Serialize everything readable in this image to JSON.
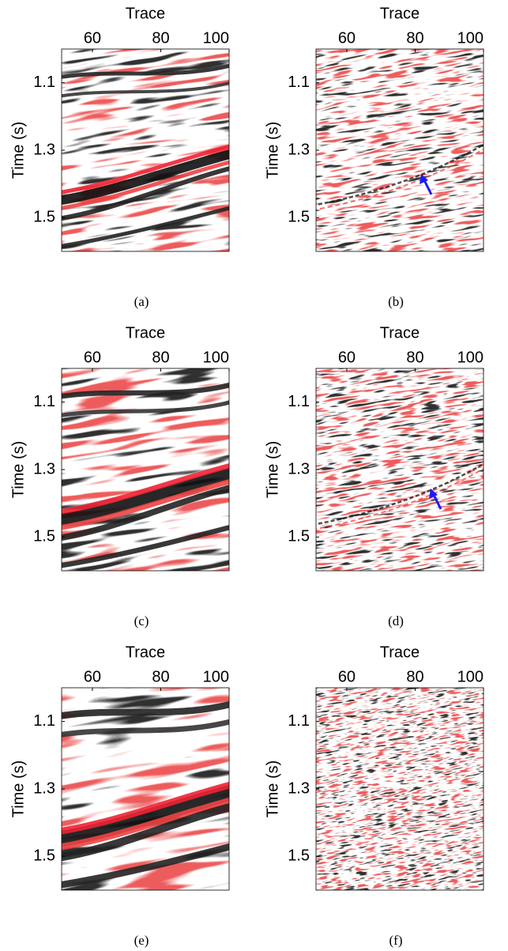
{
  "chart_data": [
    {
      "type": "seismic",
      "title": "Trace",
      "ylabel": "Time (s)",
      "xlim": [
        51,
        100
      ],
      "xticks": [
        60,
        80,
        100
      ],
      "ylim": [
        1.0,
        1.6
      ],
      "yticks": [
        1.1,
        1.3,
        1.5
      ],
      "caption": "(a)"
    },
    {
      "type": "seismic",
      "title": "Trace",
      "ylabel": "Time (s)",
      "xlim": [
        51,
        100
      ],
      "xticks": [
        60,
        80,
        100
      ],
      "ylim": [
        1.0,
        1.6
      ],
      "yticks": [
        1.1,
        1.3,
        1.5
      ],
      "caption": "(b)"
    },
    {
      "type": "seismic",
      "title": "Trace",
      "ylabel": "Time (s)",
      "xlim": [
        51,
        100
      ],
      "xticks": [
        60,
        80,
        100
      ],
      "ylim": [
        1.0,
        1.6
      ],
      "yticks": [
        1.1,
        1.3,
        1.5
      ],
      "caption": "(c)"
    },
    {
      "type": "seismic",
      "title": "Trace",
      "ylabel": "Time (s)",
      "xlim": [
        51,
        100
      ],
      "xticks": [
        60,
        80,
        100
      ],
      "ylim": [
        1.0,
        1.6
      ],
      "yticks": [
        1.1,
        1.3,
        1.5
      ],
      "caption": "(d)"
    },
    {
      "type": "seismic",
      "title": "Trace",
      "ylabel": "Time (s)",
      "xlim": [
        51,
        100
      ],
      "xticks": [
        60,
        80,
        100
      ],
      "ylim": [
        1.0,
        1.6
      ],
      "yticks": [
        1.1,
        1.3,
        1.5
      ],
      "caption": "(e)"
    },
    {
      "type": "seismic",
      "title": "Trace",
      "ylabel": "Time (s)",
      "xlim": [
        51,
        100
      ],
      "xticks": [
        60,
        80,
        100
      ],
      "ylim": [
        1.0,
        1.6
      ],
      "yticks": [
        1.1,
        1.3,
        1.5
      ],
      "caption": "(f)"
    }
  ]
}
